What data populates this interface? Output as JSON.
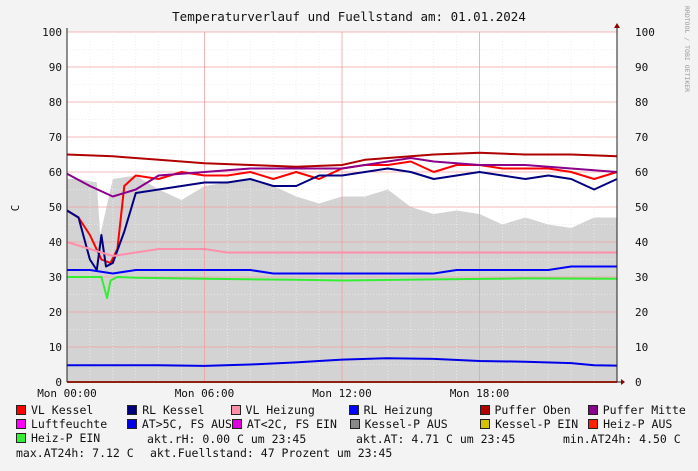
{
  "chart_data": {
    "type": "line",
    "title": "Temperaturverlauf und Fuellstand am: 01.01.2024",
    "ylabel": "C",
    "watermark": "RRDTOOL / TOBI OETIKER",
    "ylim": [
      0,
      100
    ],
    "yticks": [
      "0",
      "10",
      "20",
      "30",
      "40",
      "50",
      "60",
      "70",
      "80",
      "90",
      "100"
    ],
    "xlim": [
      0,
      24
    ],
    "xticks": [
      {
        "label": "Mon 00:00",
        "x": 0
      },
      {
        "label": "Mon 06:00",
        "x": 6
      },
      {
        "label": "Mon 12:00",
        "x": 12
      },
      {
        "label": "Mon 18:00",
        "x": 18
      }
    ],
    "grid": true,
    "legend_position": "bottom",
    "fill_series": {
      "name": "Fuellstand (Prozent)",
      "color": "#d3d3d3",
      "x": [
        0,
        0.5,
        1.3,
        1.45,
        2.0,
        3.0,
        4.0,
        5.0,
        6.0,
        7.0,
        8.0,
        9.0,
        10.0,
        11.0,
        12.0,
        13.0,
        14.0,
        15.0,
        16.0,
        17.0,
        18.0,
        19.0,
        20.0,
        21.0,
        22.0,
        23.0,
        24.0
      ],
      "values": [
        58,
        58,
        57,
        42,
        58,
        59,
        55,
        52,
        56,
        57,
        58,
        56,
        53,
        51,
        53,
        53,
        55,
        50,
        48,
        49,
        48,
        45,
        47,
        45,
        44,
        47,
        47
      ]
    },
    "series": [
      {
        "name": "VL Kessel",
        "color": "#ff0000",
        "x": [
          0,
          0.5,
          1.0,
          1.5,
          1.9,
          2.2,
          2.5,
          3.0,
          4.0,
          5.0,
          6.0,
          7.0,
          8.0,
          9.0,
          10.0,
          11.0,
          12.0,
          13.0,
          14.0,
          15.0,
          16.0,
          17.0,
          18.0,
          19.0,
          20.0,
          21.0,
          22.0,
          23.0,
          24.0
        ],
        "values": [
          49,
          47,
          42,
          35,
          34,
          38,
          56,
          59,
          58,
          60,
          59,
          59,
          60,
          58,
          60,
          58,
          61,
          62,
          62,
          63,
          60,
          62,
          62,
          61,
          61,
          61,
          60,
          58,
          60
        ]
      },
      {
        "name": "RL Kessel",
        "color": "#000080",
        "x": [
          0,
          0.5,
          1.0,
          1.3,
          1.5,
          1.7,
          2.0,
          2.5,
          3.0,
          4.0,
          5.0,
          6.0,
          7.0,
          8.0,
          9.0,
          10.0,
          11.0,
          12.0,
          13.0,
          14.0,
          15.0,
          16.0,
          17.0,
          18.0,
          19.0,
          20.0,
          21.0,
          22.0,
          23.0,
          24.0
        ],
        "values": [
          49,
          47,
          35,
          32,
          42,
          33,
          34,
          43,
          54,
          55,
          56,
          57,
          57,
          58,
          56,
          56,
          59,
          59,
          60,
          61,
          60,
          58,
          59,
          60,
          59,
          58,
          59,
          58,
          55,
          58
        ]
      },
      {
        "name": "VL Heizung",
        "color": "#ff8fa8",
        "x": [
          0,
          1.0,
          2.0,
          3.0,
          4.0,
          5.0,
          6.0,
          7.0,
          8.0,
          9.0,
          10.0,
          11.0,
          12.0,
          13.0,
          14.0,
          15.0,
          16.0,
          17.0,
          18.0,
          19.0,
          20.0,
          21.0,
          22.0,
          23.0,
          24.0
        ],
        "values": [
          40,
          38,
          36,
          37,
          38,
          38,
          38,
          37,
          37,
          37,
          37,
          37,
          37,
          37,
          37,
          37,
          37,
          37,
          37,
          37,
          37,
          37,
          37,
          37,
          37
        ]
      },
      {
        "name": "RL Heizung",
        "color": "#0000ff",
        "x": [
          0,
          1.0,
          2.0,
          3.0,
          4.0,
          5.0,
          6.0,
          7.0,
          8.0,
          9.0,
          10.0,
          11.0,
          12.0,
          13.0,
          14.0,
          15.0,
          16.0,
          17.0,
          18.0,
          19.0,
          20.0,
          21.0,
          22.0,
          23.0,
          24.0
        ],
        "values": [
          32,
          32,
          31,
          32,
          32,
          32,
          32,
          32,
          32,
          31,
          31,
          31,
          31,
          31,
          31,
          31,
          31,
          32,
          32,
          32,
          32,
          32,
          33,
          33,
          33
        ]
      },
      {
        "name": "Puffer Oben",
        "color": "#b00000",
        "x": [
          0,
          2.0,
          4.0,
          6.0,
          8.0,
          10.0,
          12.0,
          13.0,
          14.0,
          15.0,
          16.0,
          18.0,
          20.0,
          22.0,
          24.0
        ],
        "values": [
          65,
          64.5,
          63.5,
          62.5,
          62,
          61.5,
          62,
          63.5,
          64,
          64.5,
          65,
          65.5,
          65,
          65,
          64.5
        ]
      },
      {
        "name": "Puffer Mitte",
        "color": "#8a008a",
        "x": [
          0,
          1.0,
          2.0,
          3.0,
          4.0,
          6.0,
          8.0,
          10.0,
          12.0,
          14.0,
          15.0,
          16.0,
          18.0,
          20.0,
          22.0,
          24.0
        ],
        "values": [
          59.5,
          56,
          53,
          55,
          59,
          60,
          61,
          61,
          61,
          63,
          64,
          63,
          62,
          62,
          61,
          60
        ]
      },
      {
        "name": "Luftfeuchte",
        "color": "#ff00ff",
        "x": [
          0,
          24
        ],
        "values": [
          0,
          0
        ]
      },
      {
        "name": "AT>5C, FS AUS",
        "color": "#0000e8",
        "x": [
          0,
          4.0,
          6.0,
          8.0,
          10.0,
          12.0,
          14.0,
          16.0,
          18.0,
          20.0,
          22.0,
          23.0,
          24.0
        ],
        "values": [
          4.8,
          4.8,
          4.6,
          5.0,
          5.6,
          6.4,
          6.8,
          6.6,
          6.0,
          5.8,
          5.4,
          4.8,
          4.7
        ]
      },
      {
        "name": "AT<2C, FS EIN",
        "color": "#dd00dd",
        "x": [
          0,
          24
        ],
        "values": [
          0,
          0
        ]
      },
      {
        "name": "Kessel-P AUS",
        "color": "#888888",
        "x": [
          0,
          24
        ],
        "values": [
          0,
          0
        ]
      },
      {
        "name": "Kessel-P EIN",
        "color": "#d4c400",
        "x": [
          0,
          24
        ],
        "values": [
          0,
          0
        ]
      },
      {
        "name": "Heiz-P AUS",
        "color": "#ff2000",
        "x": [
          0,
          24
        ],
        "values": [
          0,
          0
        ]
      },
      {
        "name": "Heiz-P EIN",
        "color": "#33ee33",
        "x": [
          0,
          1.5,
          1.75,
          1.9,
          2.2,
          3.0,
          6.0,
          10.0,
          12.0,
          16.0,
          20.0,
          24.0
        ],
        "values": [
          30,
          30,
          24,
          29,
          30,
          29.8,
          29.5,
          29.2,
          29,
          29.3,
          29.6,
          29.5
        ]
      }
    ]
  },
  "stats": {
    "rh": "akt.rH: 0.00 C um 23:45",
    "at": "akt.AT: 4.71 C um 23:45",
    "min": "min.AT24h: 4.50 C",
    "max": "max.AT24h: 7.12 C",
    "fill": "akt.Fuellstand:   47 Prozent um 23:45"
  }
}
